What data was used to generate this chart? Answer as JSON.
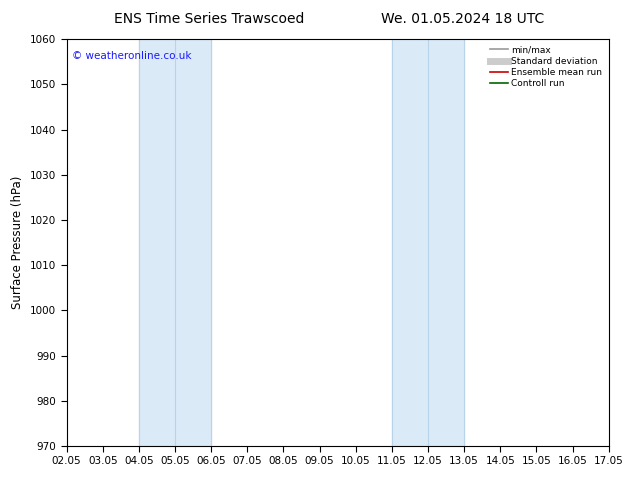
{
  "title_left": "ENS Time Series Trawscoed",
  "title_right": "We. 01.05.2024 18 UTC",
  "ylabel": "Surface Pressure (hPa)",
  "ylim": [
    970,
    1060
  ],
  "yticks": [
    970,
    980,
    990,
    1000,
    1010,
    1020,
    1030,
    1040,
    1050,
    1060
  ],
  "xtick_labels": [
    "02.05",
    "03.05",
    "04.05",
    "05.05",
    "06.05",
    "07.05",
    "08.05",
    "09.05",
    "10.05",
    "11.05",
    "12.05",
    "13.05",
    "14.05",
    "15.05",
    "16.05",
    "17.05"
  ],
  "xtick_positions": [
    0,
    1,
    2,
    3,
    4,
    5,
    6,
    7,
    8,
    9,
    10,
    11,
    12,
    13,
    14,
    15
  ],
  "shaded_bands": [
    {
      "xmin": 2,
      "xmax": 4,
      "color": "#daeaf7"
    },
    {
      "xmin": 9,
      "xmax": 11,
      "color": "#daeaf7"
    }
  ],
  "shaded_band_edges": [
    2,
    3,
    4,
    9,
    10,
    11
  ],
  "edge_color": "#b8d4ea",
  "watermark": "© weatheronline.co.uk",
  "watermark_color": "#1a1aff",
  "legend_entries": [
    {
      "label": "min/max",
      "color": "#999999",
      "lw": 1.2
    },
    {
      "label": "Standard deviation",
      "color": "#cccccc",
      "lw": 5
    },
    {
      "label": "Ensemble mean run",
      "color": "#cc0000",
      "lw": 1.2
    },
    {
      "label": "Controll run",
      "color": "#006600",
      "lw": 1.2
    }
  ],
  "background_color": "#ffffff",
  "title_fontsize": 10,
  "tick_fontsize": 7.5,
  "ylabel_fontsize": 8.5
}
